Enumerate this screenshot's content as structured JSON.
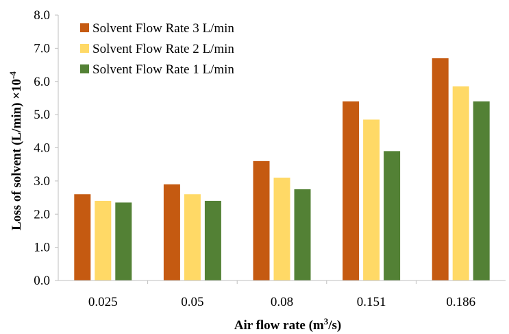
{
  "chart_data": {
    "type": "bar",
    "categories": [
      "0.025",
      "0.05",
      "0.08",
      "0.151",
      "0.186"
    ],
    "series": [
      {
        "name": "Solvent Flow Rate 3 L/min",
        "color": "#c55a11",
        "values": [
          2.6,
          2.9,
          3.6,
          5.4,
          6.7
        ]
      },
      {
        "name": "Solvent Flow Rate 2 L/min",
        "color": "#ffd966",
        "values": [
          2.4,
          2.6,
          3.1,
          4.85,
          5.85
        ]
      },
      {
        "name": "Solvent Flow Rate 1 L/min",
        "color": "#538135",
        "values": [
          2.35,
          2.4,
          2.75,
          3.9,
          5.4
        ]
      }
    ],
    "xlabel_main": "Air flow rate (m",
    "xlabel_sup": "3",
    "xlabel_tail": "/s)",
    "ylabel_main": "Loss of solvent (L/min) ×10",
    "ylabel_sup": "-4",
    "ylim": [
      0,
      8
    ],
    "yticks": [
      "0.0",
      "1.0",
      "2.0",
      "3.0",
      "4.0",
      "5.0",
      "6.0",
      "7.0",
      "8.0"
    ],
    "grid": false,
    "legend_position": "top-left"
  }
}
